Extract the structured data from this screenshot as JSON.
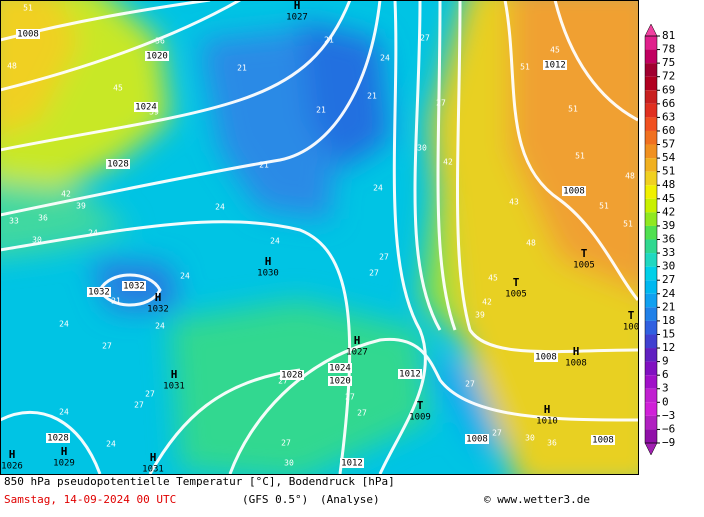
{
  "footer": {
    "title": "850 hPa pseudopotentielle Temperatur [°C], Bodendruck [hPa]",
    "date": "Samstag, 14-09-2024  00 UTC",
    "model": "(GFS 0.5°)",
    "run": "(Analyse)",
    "credit": "© www.wetter3.de"
  },
  "colorbar": {
    "ticks": [
      81,
      78,
      75,
      72,
      69,
      66,
      63,
      60,
      57,
      54,
      51,
      48,
      45,
      42,
      39,
      36,
      33,
      30,
      27,
      24,
      21,
      18,
      15,
      12,
      9,
      6,
      3,
      0,
      {
        "value": -3,
        "label": "−3"
      },
      {
        "value": -6,
        "label": "−6"
      },
      {
        "value": -9,
        "label": "−9"
      }
    ],
    "colors": [
      "#e0208c",
      "#c00060",
      "#a00030",
      "#b00020",
      "#c82020",
      "#e03020",
      "#f05020",
      "#f07020",
      "#f09020",
      "#f0b020",
      "#f0d020",
      "#f0f000",
      "#c8f000",
      "#90e820",
      "#50e050",
      "#30d890",
      "#20d8c0",
      "#00d0e8",
      "#00b8f0",
      "#10a0f0",
      "#2080e8",
      "#3060e0",
      "#4040d0",
      "#6020c0",
      "#8010c0",
      "#a010c8",
      "#c020d0",
      "#d020d8",
      "#b020c0",
      "#9010a8"
    ],
    "over_color": "#f040a0",
    "under_color": "#a020b0"
  },
  "pressure_systems": [
    {
      "symbol": "H",
      "pressure": "1027"
    },
    {
      "symbol": "H",
      "pressure": "1030"
    },
    {
      "symbol": "H",
      "pressure": "1032"
    },
    {
      "symbol": "H",
      "pressure": "1031"
    },
    {
      "symbol": "H",
      "pressure": "1027"
    },
    {
      "symbol": "T",
      "pressure": "1005"
    },
    {
      "symbol": "T",
      "pressure": "1005"
    },
    {
      "symbol": "H",
      "pressure": "1008"
    },
    {
      "symbol": "T",
      "pressure": "1009"
    },
    {
      "symbol": "H",
      "pressure": "1010"
    },
    {
      "symbol": "H",
      "pressure": "1029"
    },
    {
      "symbol": "H",
      "pressure": "1031"
    },
    {
      "symbol": "H",
      "pressure": "1026"
    },
    {
      "symbol": "T",
      "pressure": "100"
    }
  ],
  "isobar_labels": [
    "1008",
    "1020",
    "1024",
    "1028",
    "1012",
    "1008",
    "1032",
    "1032",
    "1028",
    "1024",
    "1020",
    "1012",
    "1008",
    "1008",
    "1008",
    "1028",
    "1012"
  ],
  "temp_labels": [
    "21",
    "24",
    "21",
    "21",
    "21",
    "21",
    "24",
    "27",
    "27",
    "30",
    "42",
    "45",
    "51",
    "51",
    "51",
    "48",
    "43",
    "51",
    "51",
    "48",
    "45",
    "42",
    "39",
    "27",
    "27",
    "24",
    "24",
    "24",
    "24",
    "27",
    "27",
    "27",
    "27",
    "27",
    "27",
    "27",
    "24",
    "24",
    "27",
    "30",
    "24",
    "24",
    "30",
    "33",
    "36",
    "42",
    "39",
    "36",
    "45",
    "39",
    "51",
    "48",
    "21",
    "36",
    "30",
    "27"
  ]
}
